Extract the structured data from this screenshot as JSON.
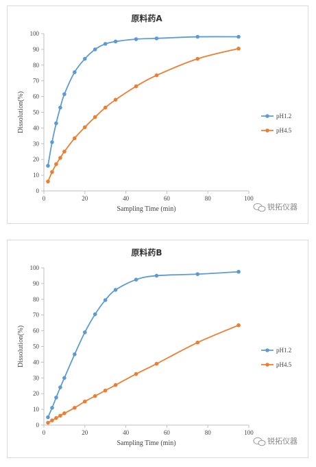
{
  "charts": [
    {
      "id": "a",
      "chart_data": {
        "type": "line",
        "title": "原料药A",
        "xlabel": "Sampling Time (min)",
        "ylabel": "Dissolution(%)",
        "xlim": [
          0,
          100
        ],
        "ylim": [
          0,
          100
        ],
        "xticks": [
          0,
          20,
          40,
          60,
          80,
          100
        ],
        "yticks": [
          0,
          10,
          20,
          30,
          40,
          50,
          60,
          70,
          80,
          90,
          100
        ],
        "grid": false,
        "legend": "right",
        "series": [
          {
            "name": "pH1.2",
            "color": "#5b9bd5",
            "x": [
              2,
              4,
              6,
              8,
              10,
              15,
              20,
              25,
              30,
              35,
              45,
              55,
              75,
              95
            ],
            "y": [
              16,
              31,
              43,
              53,
              61.5,
              75.5,
              84,
              90,
              93.5,
              95,
              96.5,
              97,
              98,
              98
            ]
          },
          {
            "name": "pH4.5",
            "color": "#ed7d31",
            "x": [
              2,
              4,
              6,
              8,
              10,
              15,
              20,
              25,
              30,
              35,
              45,
              55,
              75,
              95
            ],
            "y": [
              6,
              12,
              17,
              21,
              25,
              33.5,
              40.5,
              47,
              53,
              58,
              66.5,
              73.5,
              84,
              90.5
            ]
          }
        ]
      },
      "watermark": "锐拓仪器"
    },
    {
      "id": "b",
      "chart_data": {
        "type": "line",
        "title": "原料药B",
        "xlabel": "Sampling Time (min)",
        "ylabel": "Dissolution(%)",
        "xlim": [
          0,
          100
        ],
        "ylim": [
          0,
          100
        ],
        "xticks": [
          0,
          20,
          40,
          60,
          80,
          100
        ],
        "yticks": [
          0,
          10,
          20,
          30,
          40,
          50,
          60,
          70,
          80,
          90,
          100
        ],
        "grid": false,
        "legend": "right",
        "series": [
          {
            "name": "pH1.2",
            "color": "#5b9bd5",
            "x": [
              2,
              4,
              6,
              8,
              10,
              15,
              20,
              25,
              30,
              35,
              45,
              55,
              75,
              95
            ],
            "y": [
              5,
              11,
              17.5,
              24,
              30,
              45,
              59,
              70.5,
              79.5,
              86,
              92.5,
              95,
              96,
              97.5
            ]
          },
          {
            "name": "pH4.5",
            "color": "#ed7d31",
            "x": [
              2,
              4,
              6,
              8,
              10,
              15,
              20,
              25,
              30,
              35,
              45,
              55,
              75,
              95
            ],
            "y": [
              1.5,
              3,
              4.5,
              6,
              7.5,
              11,
              15,
              18.5,
              22,
              25.5,
              32.5,
              39,
              52.5,
              63.5
            ]
          }
        ]
      },
      "watermark": "锐拓仪器"
    }
  ]
}
